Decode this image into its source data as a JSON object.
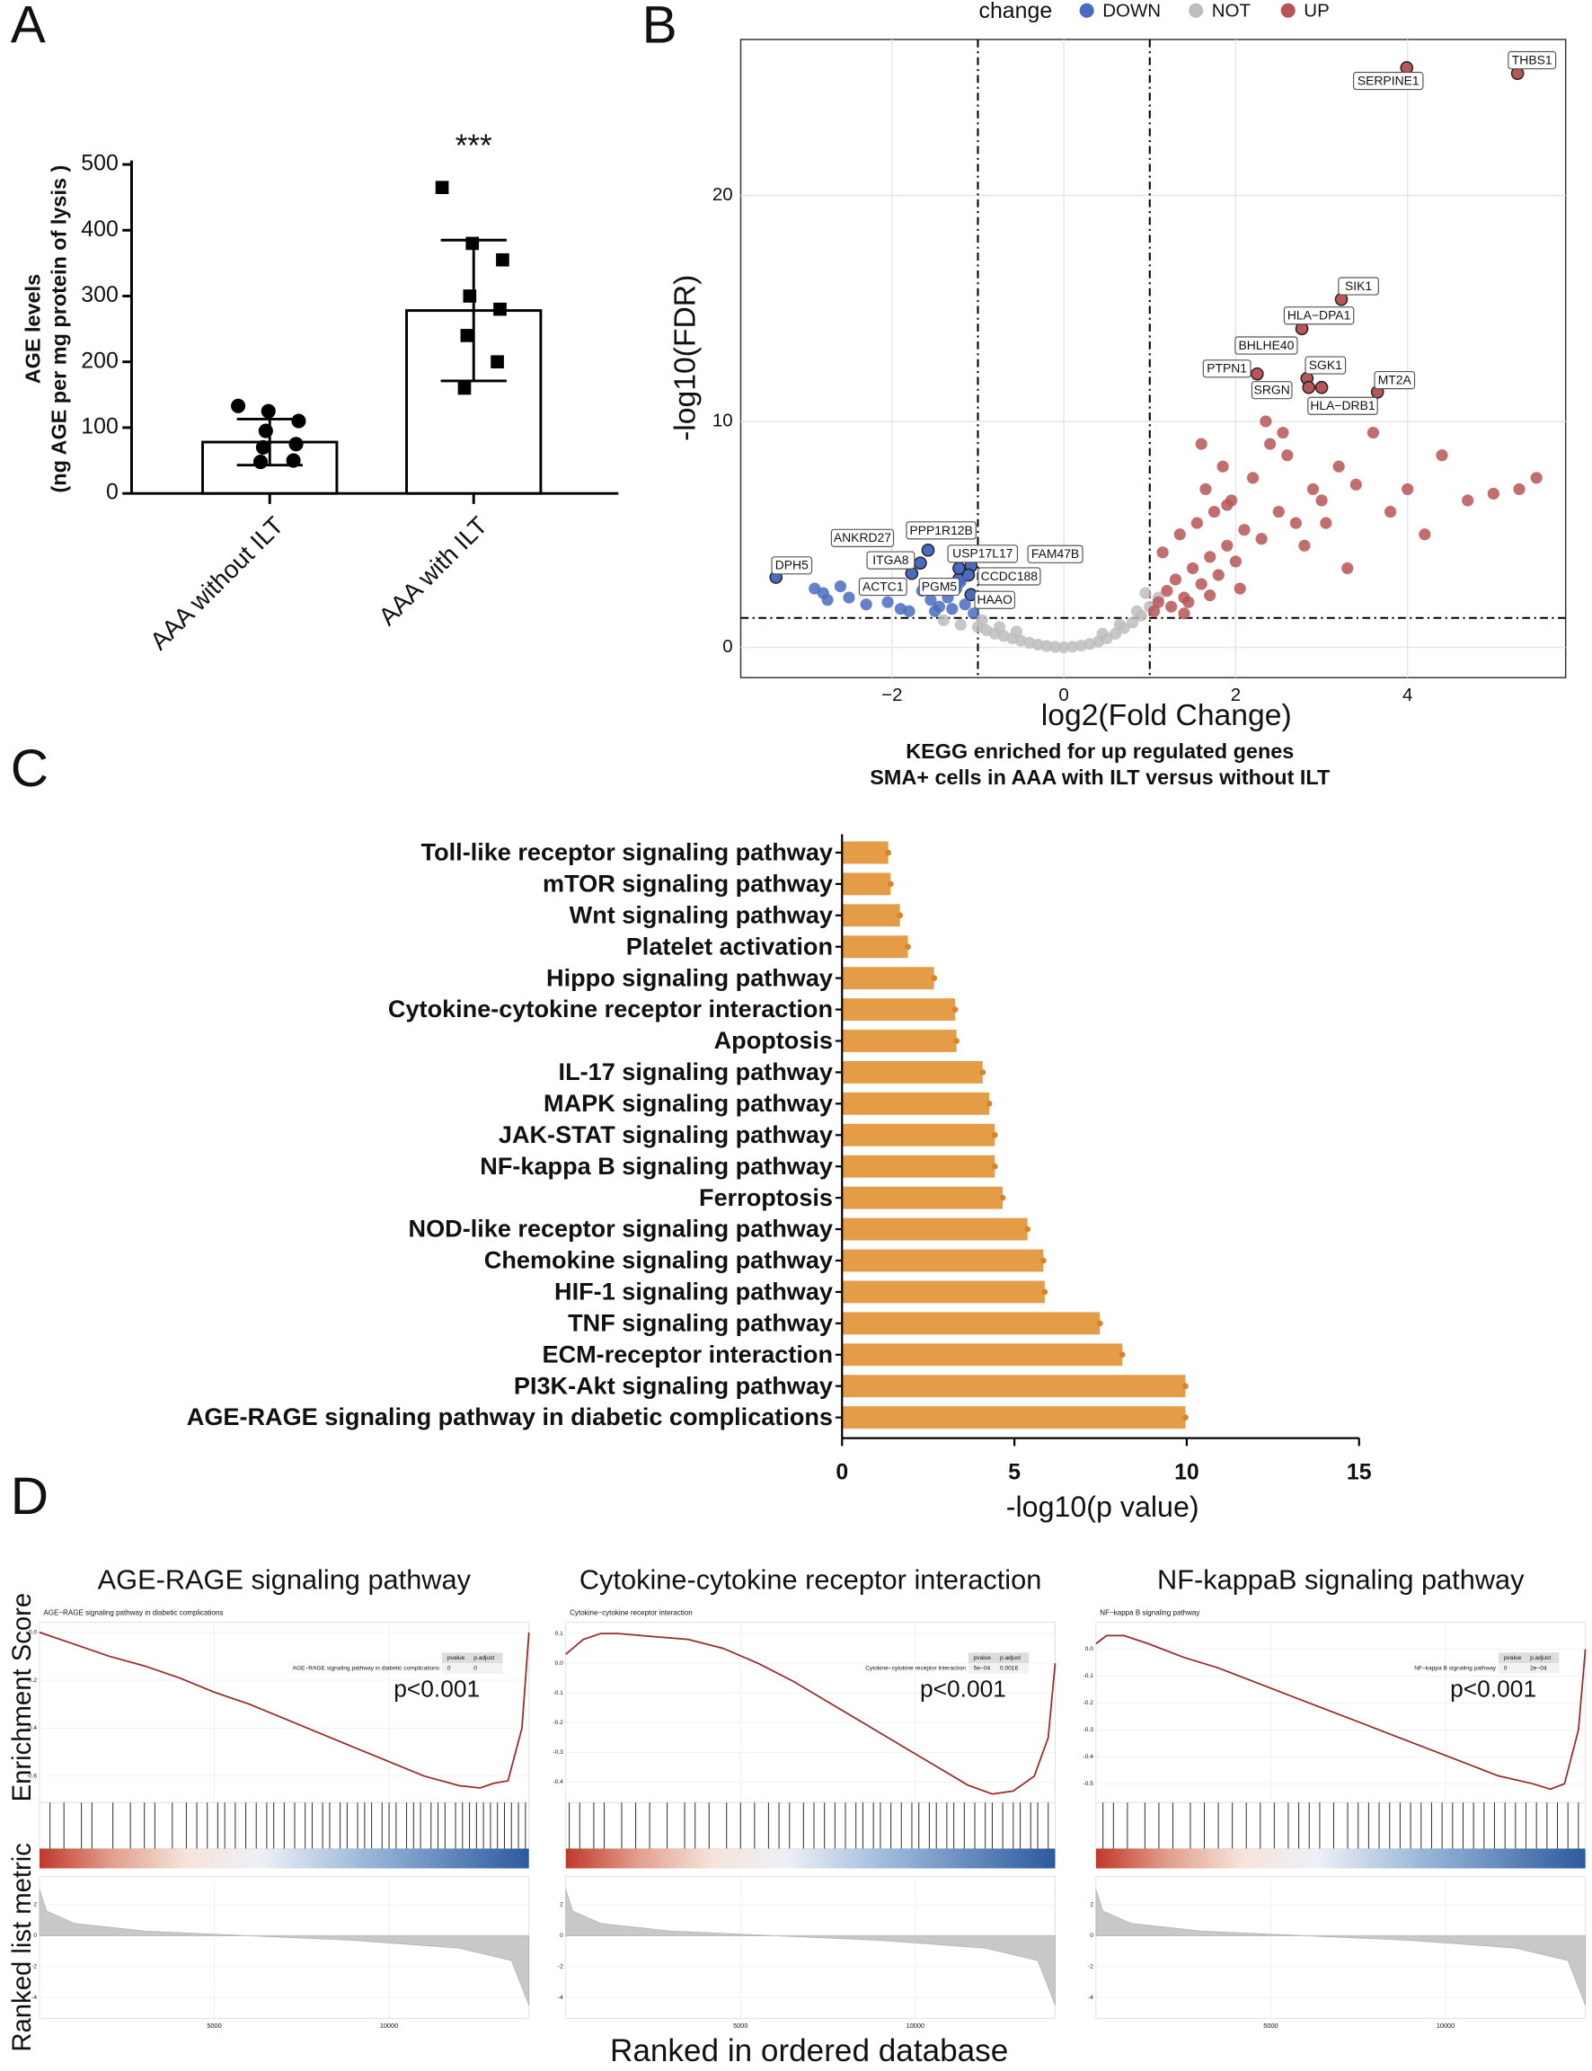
{
  "panel_labels": [
    "A",
    "B",
    "C",
    "D"
  ],
  "gsea_labels": {
    "y_top": "Enrichment Score",
    "y_bottom": "Ranked list metric",
    "x": "Ranked in ordered database"
  },
  "chart_data": [
    {
      "type": "bar",
      "y_label": [
        "AGE levels",
        "(ng AGE per mg protein of lysis )"
      ],
      "categories": [
        "AAA without ILT",
        "AAA with ILT"
      ],
      "values": [
        78,
        278
      ],
      "errors": [
        35,
        107
      ],
      "points": [
        [
          133,
          125,
          110,
          95,
          75,
          70,
          50,
          48
        ],
        [
          465,
          380,
          355,
          300,
          280,
          240,
          200,
          160
        ]
      ],
      "color": "#ffffff",
      "annotation": "***",
      "ylim": [
        0,
        500
      ],
      "yticks": [
        0,
        100,
        200,
        300,
        400,
        500
      ]
    },
    {
      "type": "scatter",
      "x_label": "log2(Fold Change)",
      "y_label": "-log10(FDR)",
      "legend_title": "change",
      "xlim": [
        -3.76,
        5.84
      ],
      "ylim": [
        -1.34,
        26.9
      ],
      "xticks": [
        {
          "value": -2,
          "label": "−2"
        },
        0,
        2,
        4
      ],
      "yticks": [
        0,
        10,
        20
      ],
      "grid": true,
      "vlines": [
        -1,
        1
      ],
      "hline": 1.3,
      "series": [
        {
          "name": "DOWN",
          "color": "#4a6bbf",
          "x": [
            -3.35,
            -1.77,
            -1.67,
            -1.58,
            -1.37,
            -1.22,
            -1.22,
            -1.08,
            -1.11,
            -1.08,
            -2.9,
            -2.8,
            -2.6,
            -2.5,
            -2.3,
            -2.75,
            -2.05,
            -1.9,
            -1.8,
            -1.65,
            -1.55,
            -1.45,
            -1.35,
            -1.25,
            -1.15,
            -1.05,
            -1.5,
            -1.3,
            -1.2
          ],
          "y": [
            3.1,
            3.27,
            3.73,
            4.3,
            2.74,
            3.03,
            3.5,
            3.6,
            3.2,
            2.33,
            2.6,
            2.4,
            2.7,
            2.2,
            1.9,
            2.1,
            2.0,
            1.7,
            1.6,
            2.5,
            2.1,
            1.8,
            2.2,
            2.6,
            1.9,
            1.5,
            1.6,
            1.7,
            2.9
          ],
          "labels": [
            "DPH5",
            "ITGA8",
            "ANKRD27",
            "PPP1R12B",
            "ACTC1",
            "PGM5",
            "USP17L17",
            "FAM47B",
            "CCDC188",
            "HAAO",
            null,
            null,
            null,
            null,
            null,
            null,
            null,
            null,
            null,
            null,
            null,
            null,
            null,
            null,
            null,
            null,
            null,
            null,
            null
          ]
        },
        {
          "name": "NOT",
          "color": "#bdbdbd",
          "x": [
            -1.4,
            -1.2,
            -1.0,
            -0.9,
            -0.8,
            -0.7,
            -0.6,
            -0.5,
            -0.4,
            -0.3,
            -0.2,
            -0.1,
            0,
            0.1,
            0.2,
            0.3,
            0.4,
            0.5,
            0.6,
            0.7,
            0.8,
            0.9,
            1.0,
            1.1,
            -0.95,
            -0.75,
            -0.55,
            0.45,
            0.65,
            0.85,
            0.95
          ],
          "y": [
            1.2,
            1.0,
            0.9,
            0.75,
            0.6,
            0.5,
            0.4,
            0.3,
            0.2,
            0.12,
            0.06,
            0.02,
            0,
            0.03,
            0.08,
            0.15,
            0.25,
            0.4,
            0.6,
            0.85,
            1.1,
            1.4,
            1.8,
            2.2,
            1.2,
            0.9,
            0.7,
            0.6,
            1.0,
            1.6,
            2.4
          ],
          "labels": [
            null,
            null,
            null,
            null,
            null,
            null,
            null,
            null,
            null,
            null,
            null,
            null,
            null,
            null,
            null,
            null,
            null,
            null,
            null,
            null,
            null,
            null,
            null,
            null,
            null,
            null,
            null,
            null,
            null,
            null,
            null
          ]
        },
        {
          "name": "UP",
          "color": "#b85555",
          "x": [
            5.28,
            3.99,
            3.23,
            2.77,
            2.57,
            2.25,
            2.83,
            2.85,
            3.0,
            3.65,
            1.1,
            1.2,
            1.3,
            1.4,
            1.5,
            1.6,
            1.7,
            1.8,
            1.9,
            2.0,
            1.15,
            1.35,
            1.55,
            1.75,
            1.95,
            2.1,
            2.3,
            2.5,
            2.7,
            2.9,
            1.25,
            1.45,
            1.65,
            1.85,
            2.2,
            2.4,
            2.6,
            3.0,
            3.2,
            3.4,
            3.6,
            3.8,
            4.0,
            4.2,
            4.4,
            4.7,
            5.0,
            5.3,
            5.5,
            2.35,
            2.55,
            1.6,
            1.9,
            2.8,
            3.3,
            1.05,
            1.4,
            1.7,
            2.05,
            3.05
          ],
          "y": [
            25.4,
            25.65,
            15.4,
            14.1,
            13.3,
            12.1,
            11.9,
            11.5,
            11.5,
            11.3,
            2.0,
            2.5,
            3.0,
            2.2,
            3.5,
            2.8,
            4.0,
            3.2,
            4.5,
            3.8,
            4.2,
            5.0,
            5.5,
            6.0,
            6.5,
            5.2,
            4.8,
            6.0,
            5.5,
            7.0,
            1.8,
            2.0,
            7.0,
            8.0,
            7.5,
            9.0,
            8.5,
            6.5,
            8.0,
            7.2,
            9.5,
            6.0,
            7.0,
            5.0,
            8.5,
            6.5,
            6.8,
            7.0,
            7.5,
            10.0,
            9.5,
            9.0,
            6.3,
            4.5,
            3.5,
            1.6,
            1.5,
            2.3,
            2.6,
            5.5
          ],
          "labels": [
            "THBS1",
            "SERPINE1",
            "SIK1",
            "HLA−DPA1",
            "BHLHE40",
            "PTPN1",
            "SGK1",
            "SRGN",
            "HLA−DRB1",
            "MT2A",
            null,
            null,
            null,
            null,
            null,
            null,
            null,
            null,
            null,
            null,
            null,
            null,
            null,
            null,
            null,
            null,
            null,
            null,
            null,
            null,
            null,
            null,
            null,
            null,
            null,
            null,
            null,
            null,
            null,
            null,
            null,
            null,
            null,
            null,
            null,
            null,
            null,
            null,
            null,
            null,
            null,
            null,
            null,
            null,
            null,
            null,
            null,
            null,
            null,
            null
          ]
        }
      ]
    },
    {
      "type": "hbar",
      "title": [
        "KEGG enriched for up regulated genes",
        "SMA+ cells in AAA with ILT versus without ILT"
      ],
      "x_label": "-log10(p value)",
      "color": "#e59c47",
      "dot_color": "#d9822b",
      "xlim": [
        0,
        15
      ],
      "xticks": [
        0,
        5,
        10,
        15
      ],
      "categories": [
        "Toll-like receptor signaling pathway",
        "mTOR signaling pathway",
        "Wnt signaling pathway",
        "Platelet activation",
        "Hippo signaling pathway",
        "Cytokine-cytokine receptor interaction",
        "Apoptosis",
        "IL-17 signaling pathway",
        "MAPK signaling pathway",
        "JAK-STAT signaling pathway",
        "NF-kappa B signaling pathway",
        "Ferroptosis",
        "NOD-like receptor signaling pathway",
        "Chemokine signaling pathway",
        "HIF-1 signaling pathway",
        "TNF signaling pathway",
        "ECM-receptor interaction",
        "PI3K-Akt signaling pathway",
        "AGE-RAGE signaling pathway in diabetic complications"
      ],
      "values": [
        1.34,
        1.41,
        1.68,
        1.91,
        2.67,
        3.28,
        3.32,
        4.08,
        4.27,
        4.43,
        4.43,
        4.66,
        5.38,
        5.84,
        5.88,
        7.48,
        8.13,
        9.96,
        9.96
      ]
    },
    {
      "type": "gsea",
      "title": "AGE-RAGE signaling pathway",
      "subtitle": "AGE−RAGE signaling pathway in diabetic complications",
      "table": {
        "columns": [
          "pvalue",
          "p.adjust"
        ],
        "row": [
          "0",
          "0"
        ]
      },
      "annotation": "p<0.001",
      "color": "#9b2a2a",
      "xlim": [
        0,
        14000
      ],
      "xticks": [
        5000,
        10000
      ],
      "ylim": [
        -0.7,
        0.02
      ],
      "yticks": [
        {
          "value": 0,
          "label": "0.0"
        },
        -0.2,
        -0.4,
        -0.6
      ],
      "x": [
        0,
        1000,
        2000,
        3000,
        4000,
        5000,
        6000,
        7000,
        8000,
        9000,
        10000,
        11000,
        12000,
        12600,
        13000,
        13400,
        13800,
        14000
      ],
      "es": [
        0,
        -0.05,
        -0.1,
        -0.14,
        -0.19,
        -0.25,
        -0.3,
        -0.36,
        -0.42,
        -0.48,
        -0.54,
        -0.6,
        -0.64,
        -0.65,
        -0.63,
        -0.62,
        -0.4,
        0
      ],
      "hits": [
        300,
        700,
        1200,
        1500,
        2100,
        2600,
        3000,
        3300,
        3800,
        4200,
        4500,
        4800,
        5100,
        5300,
        5600,
        5900,
        6200,
        6500,
        6700,
        7000,
        7300,
        7600,
        7800,
        8100,
        8300,
        8600,
        8800,
        9100,
        9300,
        9500,
        9800,
        10000,
        10200,
        10500,
        10700,
        10900,
        11200,
        11400,
        11600,
        11900,
        12100,
        12300,
        12500,
        12700,
        12900,
        13100,
        13300,
        13500,
        13700,
        13900
      ],
      "metric_x": [
        0,
        200,
        1000,
        3000,
        6000,
        9000,
        12000,
        13500,
        14000
      ],
      "metric_values": [
        3,
        1.6,
        0.8,
        0.3,
        0,
        -0.3,
        -0.8,
        -1.6,
        -4.5
      ],
      "metric_ylim": [
        -5,
        3.5
      ],
      "metric_yticks": [
        2,
        0,
        -2,
        -4
      ]
    },
    {
      "type": "gsea",
      "title": "Cytokine-cytokine receptor interaction",
      "subtitle": "Cytokine−cytokine receptor interaction",
      "table": {
        "columns": [
          "pvalue",
          "p.adjust"
        ],
        "row": [
          "5e−04",
          "0.0016"
        ]
      },
      "annotation": "p<0.001",
      "color": "#9b2a2a",
      "xlim": [
        0,
        14000
      ],
      "xticks": [
        5000,
        10000
      ],
      "ylim": [
        -0.46,
        0.12
      ],
      "yticks": [
        0.1,
        {
          "value": 0,
          "label": "0.0"
        },
        -0.1,
        -0.2,
        -0.3,
        -0.4
      ],
      "x": [
        0,
        500,
        1000,
        1500,
        2500,
        3500,
        4500,
        5500,
        6500,
        7500,
        8500,
        9500,
        10500,
        11500,
        12200,
        12800,
        13400,
        13800,
        14000
      ],
      "es": [
        0.03,
        0.08,
        0.1,
        0.1,
        0.09,
        0.08,
        0.05,
        0.0,
        -0.06,
        -0.13,
        -0.2,
        -0.27,
        -0.34,
        -0.41,
        -0.44,
        -0.43,
        -0.38,
        -0.25,
        0
      ],
      "hits": [
        100,
        400,
        800,
        1100,
        1600,
        2000,
        2400,
        2900,
        3400,
        3700,
        4100,
        4600,
        5000,
        5400,
        5800,
        6100,
        6400,
        6800,
        7100,
        7400,
        7700,
        8000,
        8300,
        8500,
        8800,
        9000,
        9300,
        9600,
        9900,
        10100,
        10400,
        10600,
        10900,
        11100,
        11400,
        11700,
        12000,
        12200,
        12500,
        12800,
        13000,
        13300,
        13500,
        13800
      ],
      "metric_x": [
        0,
        200,
        1000,
        3000,
        6000,
        9000,
        12000,
        13500,
        14000
      ],
      "metric_values": [
        3,
        1.6,
        0.8,
        0.3,
        0,
        -0.3,
        -0.8,
        -1.6,
        -4.5
      ],
      "metric_ylim": [
        -5,
        3.5
      ],
      "metric_yticks": [
        2,
        0,
        -2,
        -4
      ]
    },
    {
      "type": "gsea",
      "title": "NF-kappaB signaling pathway",
      "subtitle": "NF−kappa B signaling pathway",
      "table": {
        "columns": [
          "pvalue",
          "p.adjust"
        ],
        "row": [
          "0",
          "2e−04"
        ]
      },
      "annotation": "p<0.001",
      "color": "#9b2a2a",
      "xlim": [
        0,
        14000
      ],
      "xticks": [
        5000,
        10000
      ],
      "ylim": [
        -0.56,
        0.08
      ],
      "yticks": [
        {
          "value": 0,
          "label": "0.0"
        },
        -0.1,
        -0.2,
        -0.3,
        -0.4,
        -0.5
      ],
      "x": [
        0,
        300,
        800,
        1500,
        2500,
        3500,
        4500,
        5500,
        6500,
        7500,
        8500,
        9500,
        10500,
        11500,
        12500,
        13000,
        13400,
        13800,
        14000
      ],
      "es": [
        0.02,
        0.05,
        0.05,
        0.02,
        -0.03,
        -0.07,
        -0.12,
        -0.17,
        -0.22,
        -0.27,
        -0.32,
        -0.37,
        -0.42,
        -0.47,
        -0.5,
        -0.52,
        -0.5,
        -0.3,
        0
      ],
      "hits": [
        200,
        500,
        900,
        1400,
        1800,
        2200,
        2700,
        3100,
        3500,
        3900,
        4300,
        4700,
        5100,
        5500,
        5800,
        6100,
        6400,
        6800,
        7200,
        7500,
        7800,
        8100,
        8400,
        8700,
        9000,
        9300,
        9600,
        9900,
        10200,
        10500,
        10800,
        11100,
        11400,
        11700,
        12000,
        12300,
        12600,
        12900,
        13200,
        13500,
        13800
      ],
      "metric_x": [
        0,
        200,
        1000,
        3000,
        6000,
        9000,
        12000,
        13500,
        14000
      ],
      "metric_values": [
        3,
        1.6,
        0.8,
        0.3,
        0,
        -0.3,
        -0.8,
        -1.6,
        -4.5
      ],
      "metric_ylim": [
        -5,
        3.5
      ],
      "metric_yticks": [
        2,
        0,
        -2,
        -4
      ]
    }
  ]
}
